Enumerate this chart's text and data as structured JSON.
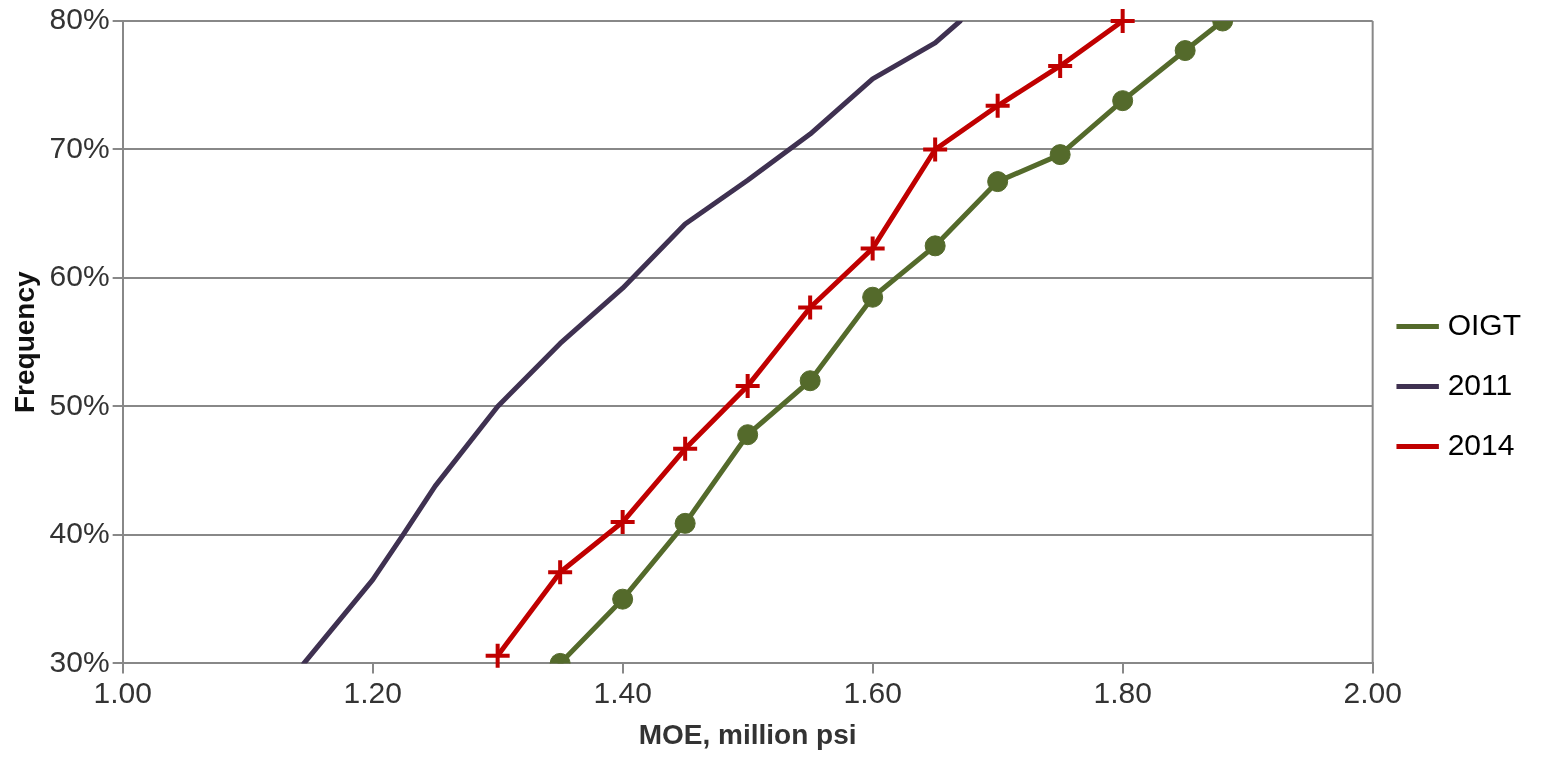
{
  "chart_data": {
    "type": "line",
    "xlabel": "MOE, million psi",
    "ylabel": "Frequency",
    "xlim": [
      1.0,
      2.0
    ],
    "xticks": [
      {
        "value": 1.0,
        "label": "1.00"
      },
      {
        "value": 1.2,
        "label": "1.20"
      },
      {
        "value": 1.4,
        "label": "1.40"
      },
      {
        "value": 1.6,
        "label": "1.60"
      },
      {
        "value": 1.8,
        "label": "1.80"
      },
      {
        "value": 2.0,
        "label": "2.00"
      }
    ],
    "ylim": [
      30,
      80
    ],
    "yticks": [
      {
        "value": 30,
        "label": "30%"
      },
      {
        "value": 40,
        "label": "40%"
      },
      {
        "value": 50,
        "label": "50%"
      },
      {
        "value": 60,
        "label": "60%"
      },
      {
        "value": 70,
        "label": "70%"
      },
      {
        "value": 80,
        "label": "80%"
      }
    ],
    "grid": "y",
    "legend": "right",
    "series": [
      {
        "name": "OIGT",
        "color": "#546a2b",
        "marker": "circle",
        "x": [
          1.35,
          1.4,
          1.45,
          1.5,
          1.55,
          1.6,
          1.65,
          1.7,
          1.75,
          1.8,
          1.85,
          1.88
        ],
        "values": [
          30,
          35.0,
          40.9,
          47.8,
          52.0,
          58.5,
          62.5,
          67.5,
          69.6,
          73.8,
          77.7,
          80
        ]
      },
      {
        "name": "2011",
        "color": "#3f3151",
        "marker": "none",
        "x": [
          1.145,
          1.2,
          1.225,
          1.25,
          1.3,
          1.35,
          1.4,
          1.45,
          1.5,
          1.55,
          1.6,
          1.65,
          1.67
        ],
        "values": [
          30,
          36.5,
          40.1,
          43.8,
          50.0,
          54.9,
          59.2,
          64.2,
          67.6,
          71.2,
          75.5,
          78.3,
          80
        ]
      },
      {
        "name": "2014",
        "color": "#c00000",
        "marker": "cross",
        "x": [
          1.3,
          1.35,
          1.4,
          1.45,
          1.5,
          1.55,
          1.6,
          1.65,
          1.7,
          1.75,
          1.8
        ],
        "values": [
          30.6,
          37.1,
          41.0,
          46.7,
          51.6,
          57.7,
          62.3,
          70.0,
          73.4,
          76.5,
          80
        ]
      }
    ]
  }
}
